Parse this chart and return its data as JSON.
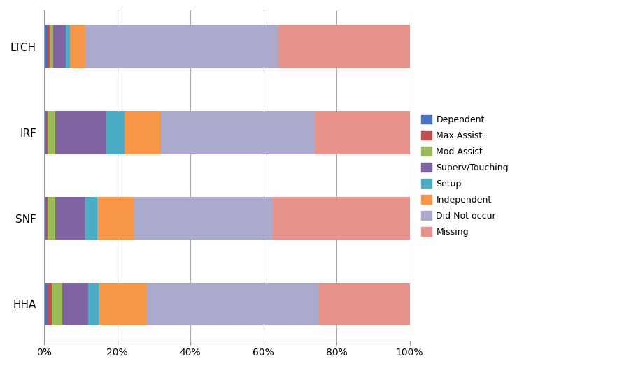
{
  "providers": [
    "LTCH",
    "IRF",
    "SNF",
    "HHA"
  ],
  "categories": [
    "Dependent",
    "Max Assist.",
    "Mod Assist",
    "Superv/Touching",
    "Setup",
    "Independent",
    "Did Not occur",
    "Missing"
  ],
  "colors": [
    "#4472c4",
    "#c0504d",
    "#9bbb59",
    "#8064a2",
    "#4bacc6",
    "#f79646",
    "#aaaacc",
    "#e8928c"
  ],
  "data": {
    "LTCH": [
      1.0,
      0.5,
      1.0,
      3.5,
      1.0,
      4.0,
      53.0,
      36.0
    ],
    "IRF": [
      0.5,
      0.5,
      2.0,
      14.0,
      5.0,
      10.0,
      42.0,
      26.0
    ],
    "SNF": [
      0.5,
      0.5,
      2.0,
      8.0,
      3.5,
      10.0,
      38.0,
      37.5
    ],
    "HHA": [
      1.0,
      1.0,
      3.0,
      7.0,
      3.0,
      13.0,
      47.0,
      25.0
    ]
  },
  "xlim": [
    0,
    100
  ],
  "xtick_labels": [
    "0%",
    "20%",
    "40%",
    "60%",
    "80%",
    "100%"
  ],
  "xtick_values": [
    0,
    20,
    40,
    60,
    80,
    100
  ],
  "figsize": [
    9.02,
    5.27
  ],
  "dpi": 100,
  "bar_height": 0.5,
  "background_color": "#ffffff",
  "grid_color": "#aaaaaa",
  "legend_fontsize": 9,
  "tick_fontsize": 10,
  "label_fontsize": 11
}
